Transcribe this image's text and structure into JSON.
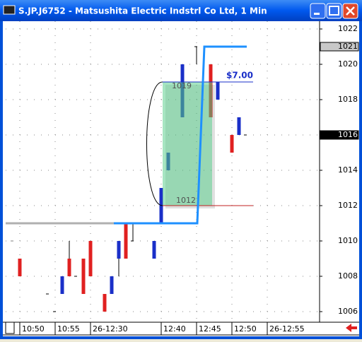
{
  "chart_data": {
    "type": "bar",
    "title": "S.JP.J6752 - Matsushita Electric Indstrl Co Ltd, 1 Min",
    "xlim": [
      -1,
      43.4
    ],
    "ylim": [
      1005.44,
      1022.44
    ],
    "yticks": [
      1006,
      1008,
      1010,
      1012,
      1014,
      1016,
      1018,
      1020,
      1022
    ],
    "xticks": [
      {
        "value": 1,
        "label": "10:50"
      },
      {
        "value": 6,
        "label": "10:55"
      },
      {
        "value": 11,
        "label": "26-12:30"
      },
      {
        "value": 21,
        "label": "12:40"
      },
      {
        "value": 26,
        "label": "12:45"
      },
      {
        "value": 31,
        "label": "12:50"
      },
      {
        "value": 36,
        "label": "26-12:55"
      }
    ],
    "grid": true,
    "bars": [
      {
        "x": 0,
        "open": 1010,
        "close": 1010,
        "low": 1010,
        "high": 1010,
        "color": "#808080"
      },
      {
        "x": 1,
        "open": 1009,
        "close": 1008,
        "low": 1008,
        "high": 1009,
        "color": "#e02020"
      },
      {
        "x": 5,
        "open": 1007,
        "close": 1007,
        "low": 1007,
        "high": 1007,
        "color": "#000000"
      },
      {
        "x": 6,
        "open": 1006,
        "close": 1006,
        "low": 1006,
        "high": 1006,
        "color": "#000000"
      },
      {
        "x": 7,
        "open": 1007,
        "close": 1008,
        "low": 1007,
        "high": 1008,
        "color": "#1a2fc8"
      },
      {
        "x": 8,
        "open": 1009,
        "close": 1008,
        "low": 1008,
        "high": 1010,
        "color": "#e02020"
      },
      {
        "x": 9,
        "open": 1008,
        "close": 1008,
        "low": 1008,
        "high": 1008,
        "color": "#000000"
      },
      {
        "x": 10,
        "open": 1009,
        "close": 1007,
        "low": 1007,
        "high": 1009,
        "color": "#e02020"
      },
      {
        "x": 11,
        "open": 1010,
        "close": 1008,
        "low": 1008,
        "high": 1010,
        "color": "#e02020"
      },
      {
        "x": 13,
        "open": 1007,
        "close": 1006,
        "low": 1006,
        "high": 1007,
        "color": "#e02020"
      },
      {
        "x": 14,
        "open": 1007,
        "close": 1008,
        "low": 1007,
        "high": 1008,
        "color": "#1a2fc8"
      },
      {
        "x": 15,
        "open": 1009,
        "close": 1010,
        "low": 1008,
        "high": 1010,
        "color": "#1a2fc8"
      },
      {
        "x": 16,
        "open": 1011,
        "close": 1009,
        "low": 1009,
        "high": 1011,
        "color": "#e02020"
      },
      {
        "x": 17,
        "open": 1010,
        "close": 1010,
        "low": 1010,
        "high": 1011,
        "color": "#000000"
      },
      {
        "x": 20,
        "open": 1009,
        "close": 1010,
        "low": 1009,
        "high": 1010,
        "color": "#1a2fc8"
      },
      {
        "x": 21,
        "open": 1011,
        "close": 1013,
        "low": 1011,
        "high": 1013,
        "color": "#1a2fc8"
      },
      {
        "x": 22,
        "open": 1014,
        "close": 1015,
        "low": 1014,
        "high": 1015,
        "color": "#1a2fc8"
      },
      {
        "x": 24,
        "open": 1017,
        "close": 1020,
        "low": 1017,
        "high": 1020,
        "color": "#1a2fc8"
      },
      {
        "x": 26,
        "open": 1021,
        "close": 1021,
        "low": 1020,
        "high": 1021,
        "color": "#000000"
      },
      {
        "x": 28,
        "open": 1020,
        "close": 1017,
        "low": 1017,
        "high": 1020,
        "color": "#e02020"
      },
      {
        "x": 29,
        "open": 1018,
        "close": 1019,
        "low": 1018,
        "high": 1019,
        "color": "#1a2fc8"
      },
      {
        "x": 31,
        "open": 1016,
        "close": 1015,
        "low": 1015,
        "high": 1016,
        "color": "#e02020"
      },
      {
        "x": 32,
        "open": 1016,
        "close": 1017,
        "low": 1016,
        "high": 1017,
        "color": "#1a2fc8"
      },
      {
        "x": 33,
        "open": 1016,
        "close": 1016,
        "low": 1016,
        "high": 1016,
        "color": "#000000"
      }
    ],
    "lines": [
      {
        "color": "#b0b0b0",
        "x": [
          -1,
          14.3
        ],
        "values": [
          1011,
          1011
        ]
      },
      {
        "color": "#1e90ff",
        "x": [
          14.3,
          26.1,
          27.1,
          33.1
        ],
        "values": [
          1011,
          1011,
          1021,
          1021
        ]
      }
    ],
    "zone": {
      "x": [
        21.2,
        28.2
      ],
      "top": 1019,
      "bottom": 1012,
      "line_end": 34,
      "color": "#5ccf8e"
    },
    "measure": {
      "value": 7,
      "label": "$7.00"
    },
    "price_markers": [
      {
        "value": 1021,
        "style": "gray"
      },
      {
        "value": 1016,
        "style": "black"
      }
    ]
  }
}
